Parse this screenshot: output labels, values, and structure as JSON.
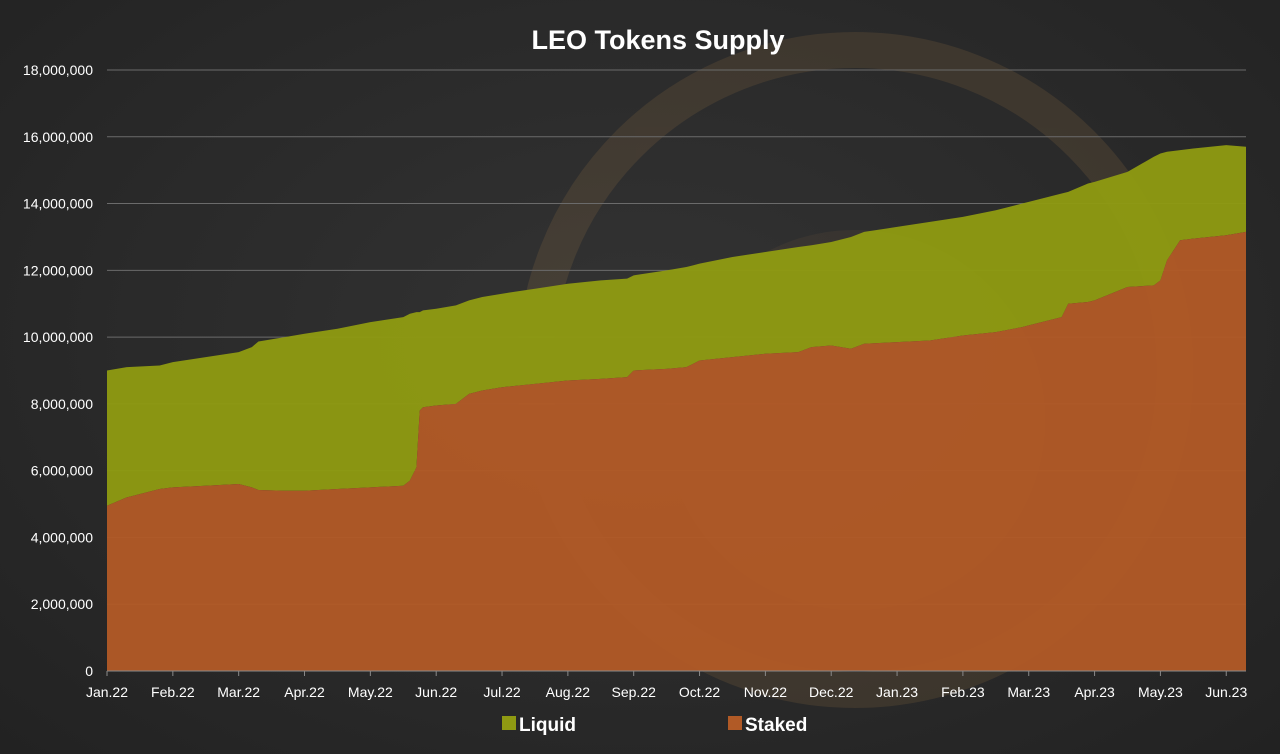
{
  "chart_data": {
    "type": "area",
    "stacked": true,
    "title": "LEO Tokens Supply",
    "xlabel": "",
    "ylabel": "",
    "ylim": [
      0,
      18000000
    ],
    "yticks": [
      0,
      2000000,
      4000000,
      6000000,
      8000000,
      10000000,
      12000000,
      14000000,
      16000000,
      18000000
    ],
    "ytick_labels": [
      "0",
      "2,000,000",
      "4,000,000",
      "6,000,000",
      "8,000,000",
      "10,000,000",
      "12,000,000",
      "14,000,000",
      "16,000,000",
      "18,000,000"
    ],
    "xtick_labels": [
      "Jan.22",
      "Feb.22",
      "Mar.22",
      "Apr.22",
      "May.22",
      "Jun.22",
      "Jul.22",
      "Aug.22",
      "Sep.22",
      "Oct.22",
      "Nov.22",
      "Dec.22",
      "Jan.23",
      "Feb.23",
      "Mar.23",
      "Apr.23",
      "May.23",
      "Jun.23"
    ],
    "x_range": [
      0,
      17.3
    ],
    "grid": "horizontal",
    "legend_position": "bottom",
    "series": [
      {
        "name": "Staked",
        "color": "#b15a26",
        "x": [
          0,
          0.3,
          0.8,
          1.0,
          1.5,
          2.0,
          2.2,
          2.3,
          2.7,
          3.0,
          3.5,
          4.0,
          4.5,
          4.6,
          4.7,
          4.75,
          4.8,
          5.0,
          5.3,
          5.5,
          5.7,
          6.0,
          6.5,
          7.0,
          7.5,
          7.9,
          8.0,
          8.5,
          8.8,
          8.9,
          9.0,
          9.5,
          10.0,
          10.5,
          10.7,
          11.0,
          11.3,
          11.5,
          12.0,
          12.5,
          13.0,
          13.5,
          13.9,
          14.0,
          14.5,
          14.6,
          14.9,
          15.0,
          15.5,
          15.9,
          16.0,
          16.1,
          16.3,
          16.5,
          17.0,
          17.3
        ],
        "values": [
          4950000,
          5200000,
          5450000,
          5500000,
          5550000,
          5600000,
          5500000,
          5420000,
          5400000,
          5400000,
          5450000,
          5500000,
          5550000,
          5700000,
          6100000,
          7800000,
          7900000,
          7950000,
          8000000,
          8300000,
          8400000,
          8500000,
          8600000,
          8700000,
          8750000,
          8800000,
          9000000,
          9050000,
          9100000,
          9200000,
          9300000,
          9400000,
          9500000,
          9550000,
          9700000,
          9750000,
          9650000,
          9800000,
          9850000,
          9900000,
          10050000,
          10150000,
          10300000,
          10350000,
          10600000,
          11000000,
          11050000,
          11100000,
          11500000,
          11550000,
          11700000,
          12300000,
          12900000,
          12950000,
          13050000,
          13150000
        ]
      },
      {
        "name": "Liquid",
        "color": "#8f9a12",
        "x": [
          0,
          0.3,
          0.8,
          1.0,
          1.5,
          2.0,
          2.2,
          2.3,
          2.7,
          3.0,
          3.5,
          4.0,
          4.5,
          4.6,
          4.7,
          4.75,
          4.8,
          5.0,
          5.3,
          5.5,
          5.7,
          6.0,
          6.5,
          7.0,
          7.5,
          7.9,
          8.0,
          8.5,
          8.8,
          8.9,
          9.0,
          9.5,
          10.0,
          10.5,
          10.7,
          11.0,
          11.3,
          11.5,
          12.0,
          12.5,
          13.0,
          13.5,
          13.9,
          14.0,
          14.5,
          14.6,
          14.9,
          15.0,
          15.5,
          15.9,
          16.0,
          16.1,
          16.3,
          16.5,
          17.0,
          17.3
        ],
        "values": [
          4050000,
          3900000,
          3700000,
          3750000,
          3850000,
          3950000,
          4200000,
          4450000,
          4600000,
          4700000,
          4800000,
          4950000,
          5050000,
          5000000,
          4650000,
          2950000,
          2900000,
          2900000,
          2950000,
          2800000,
          2800000,
          2800000,
          2850000,
          2900000,
          2950000,
          2950000,
          2850000,
          2950000,
          3000000,
          2950000,
          2900000,
          3000000,
          3050000,
          3150000,
          3050000,
          3100000,
          3350000,
          3350000,
          3450000,
          3550000,
          3550000,
          3650000,
          3700000,
          3700000,
          3700000,
          3350000,
          3550000,
          3550000,
          3450000,
          3850000,
          3800000,
          3250000,
          2700000,
          2700000,
          2700000,
          2550000
        ]
      }
    ]
  },
  "legend": [
    {
      "label": "Liquid",
      "color": "#8f9a12"
    },
    {
      "label": "Staked",
      "color": "#b15a26"
    }
  ]
}
